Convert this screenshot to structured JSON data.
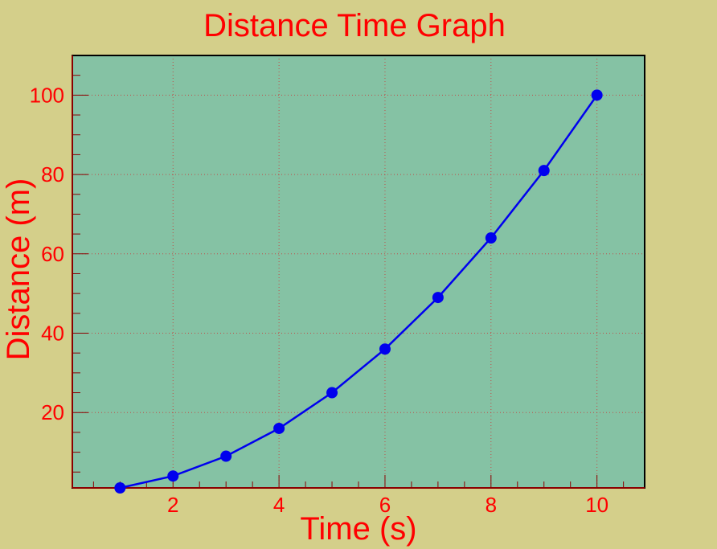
{
  "chart_data": {
    "type": "line",
    "title": "Distance Time Graph",
    "xlabel": "Time (s)",
    "ylabel": "Distance (m)",
    "xlim": [
      0.1,
      10.9
    ],
    "ylim": [
      1,
      110
    ],
    "xticks": [
      2,
      4,
      6,
      8,
      10
    ],
    "yticks": [
      20,
      40,
      60,
      80,
      100
    ],
    "grid": true,
    "series": [
      {
        "name": "distance",
        "x": [
          1,
          2,
          3,
          4,
          5,
          6,
          7,
          8,
          9,
          10
        ],
        "values": [
          1,
          4,
          9,
          16,
          25,
          36,
          49,
          64,
          81,
          100
        ]
      }
    ]
  },
  "colors": {
    "background": "#d4cf8a",
    "plot_area": "#85c2a4",
    "text": "#ff0000",
    "series": "#0000ee",
    "frame": "#000000"
  }
}
